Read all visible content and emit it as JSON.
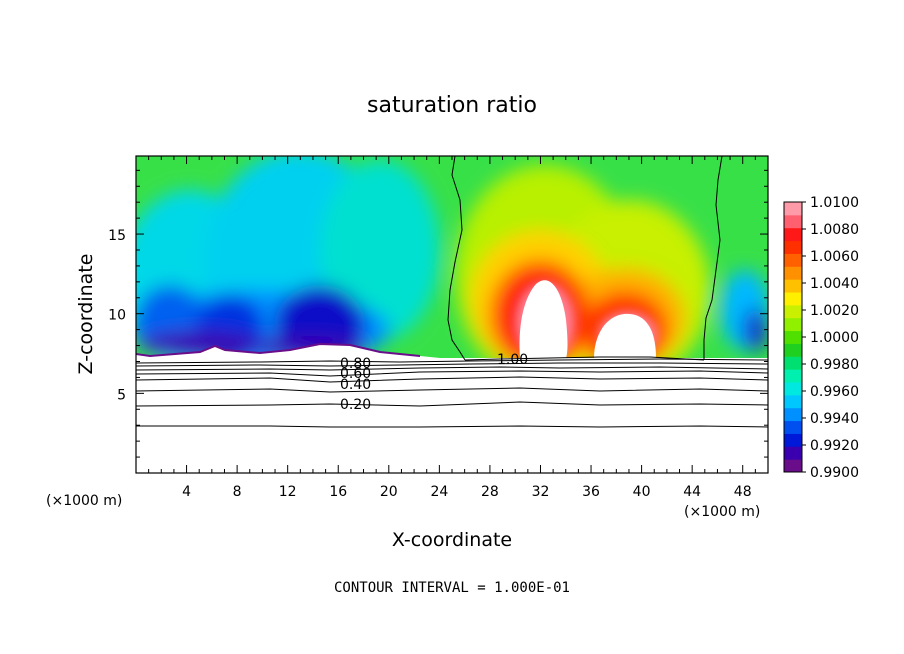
{
  "chart_data": {
    "type": "heatmap",
    "title": "saturation ratio",
    "xlabel": "X-coordinate",
    "ylabel": "Z-coordinate",
    "x_unit": "(×1000 m)",
    "z_unit": "(×1000 m)",
    "xlim": [
      0,
      50
    ],
    "ylim": [
      0,
      19.9
    ],
    "x_ticks": [
      4,
      8,
      12,
      16,
      20,
      24,
      28,
      32,
      36,
      40,
      44,
      48
    ],
    "y_ticks": [
      5,
      10,
      15
    ],
    "colorbar": {
      "range": [
        0.99,
        1.01
      ],
      "tick_labels": [
        "0.9900",
        "0.9920",
        "0.9940",
        "0.9960",
        "0.9980",
        "1.0000",
        "1.0020",
        "1.0040",
        "1.0060",
        "1.0080",
        "1.0100"
      ],
      "colors": [
        "#6a0d8a",
        "#3a00b0",
        "#0018d8",
        "#0050f0",
        "#0090ff",
        "#00c8ff",
        "#00e8e0",
        "#00f0b0",
        "#00e070",
        "#20d020",
        "#50e000",
        "#90f000",
        "#c8f000",
        "#fff000",
        "#ffc000",
        "#ff9000",
        "#ff6000",
        "#ff3000",
        "#ff1818",
        "#ff6070",
        "#ff9aa8"
      ]
    },
    "contour_interval": "CONTOUR INTERVAL = 1.000E-01",
    "contour_labels": [
      "0.80",
      "0.60",
      "0.40",
      "0.20",
      "1.00"
    ],
    "contour_levels": [
      0.2,
      0.4,
      0.6,
      0.8,
      1.0
    ]
  }
}
